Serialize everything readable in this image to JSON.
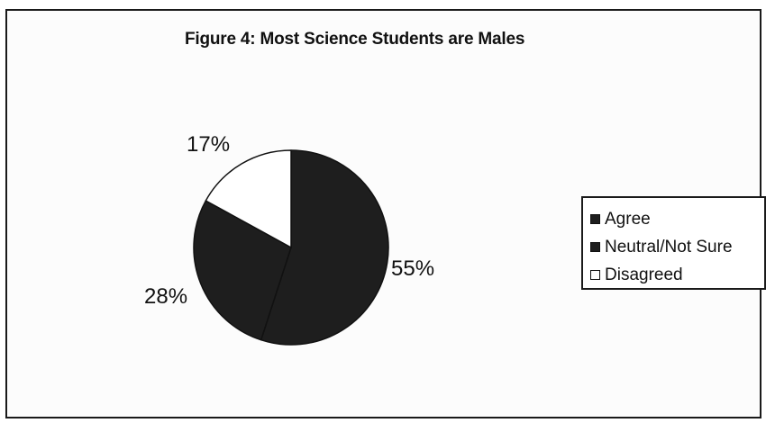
{
  "chart_data": {
    "type": "pie",
    "title": "Figure 4: Most Science Students are Males",
    "categories": [
      "Agree",
      "Neutral/Not Sure",
      "Disagreed"
    ],
    "values": [
      55,
      28,
      17
    ],
    "value_labels": [
      "55%",
      "28%",
      "17%"
    ],
    "colors": [
      "#1e1e1e",
      "#1e1e1e",
      "#ffffff"
    ],
    "legend_position": "right",
    "start_angle_deg": 0,
    "direction": "clockwise"
  }
}
